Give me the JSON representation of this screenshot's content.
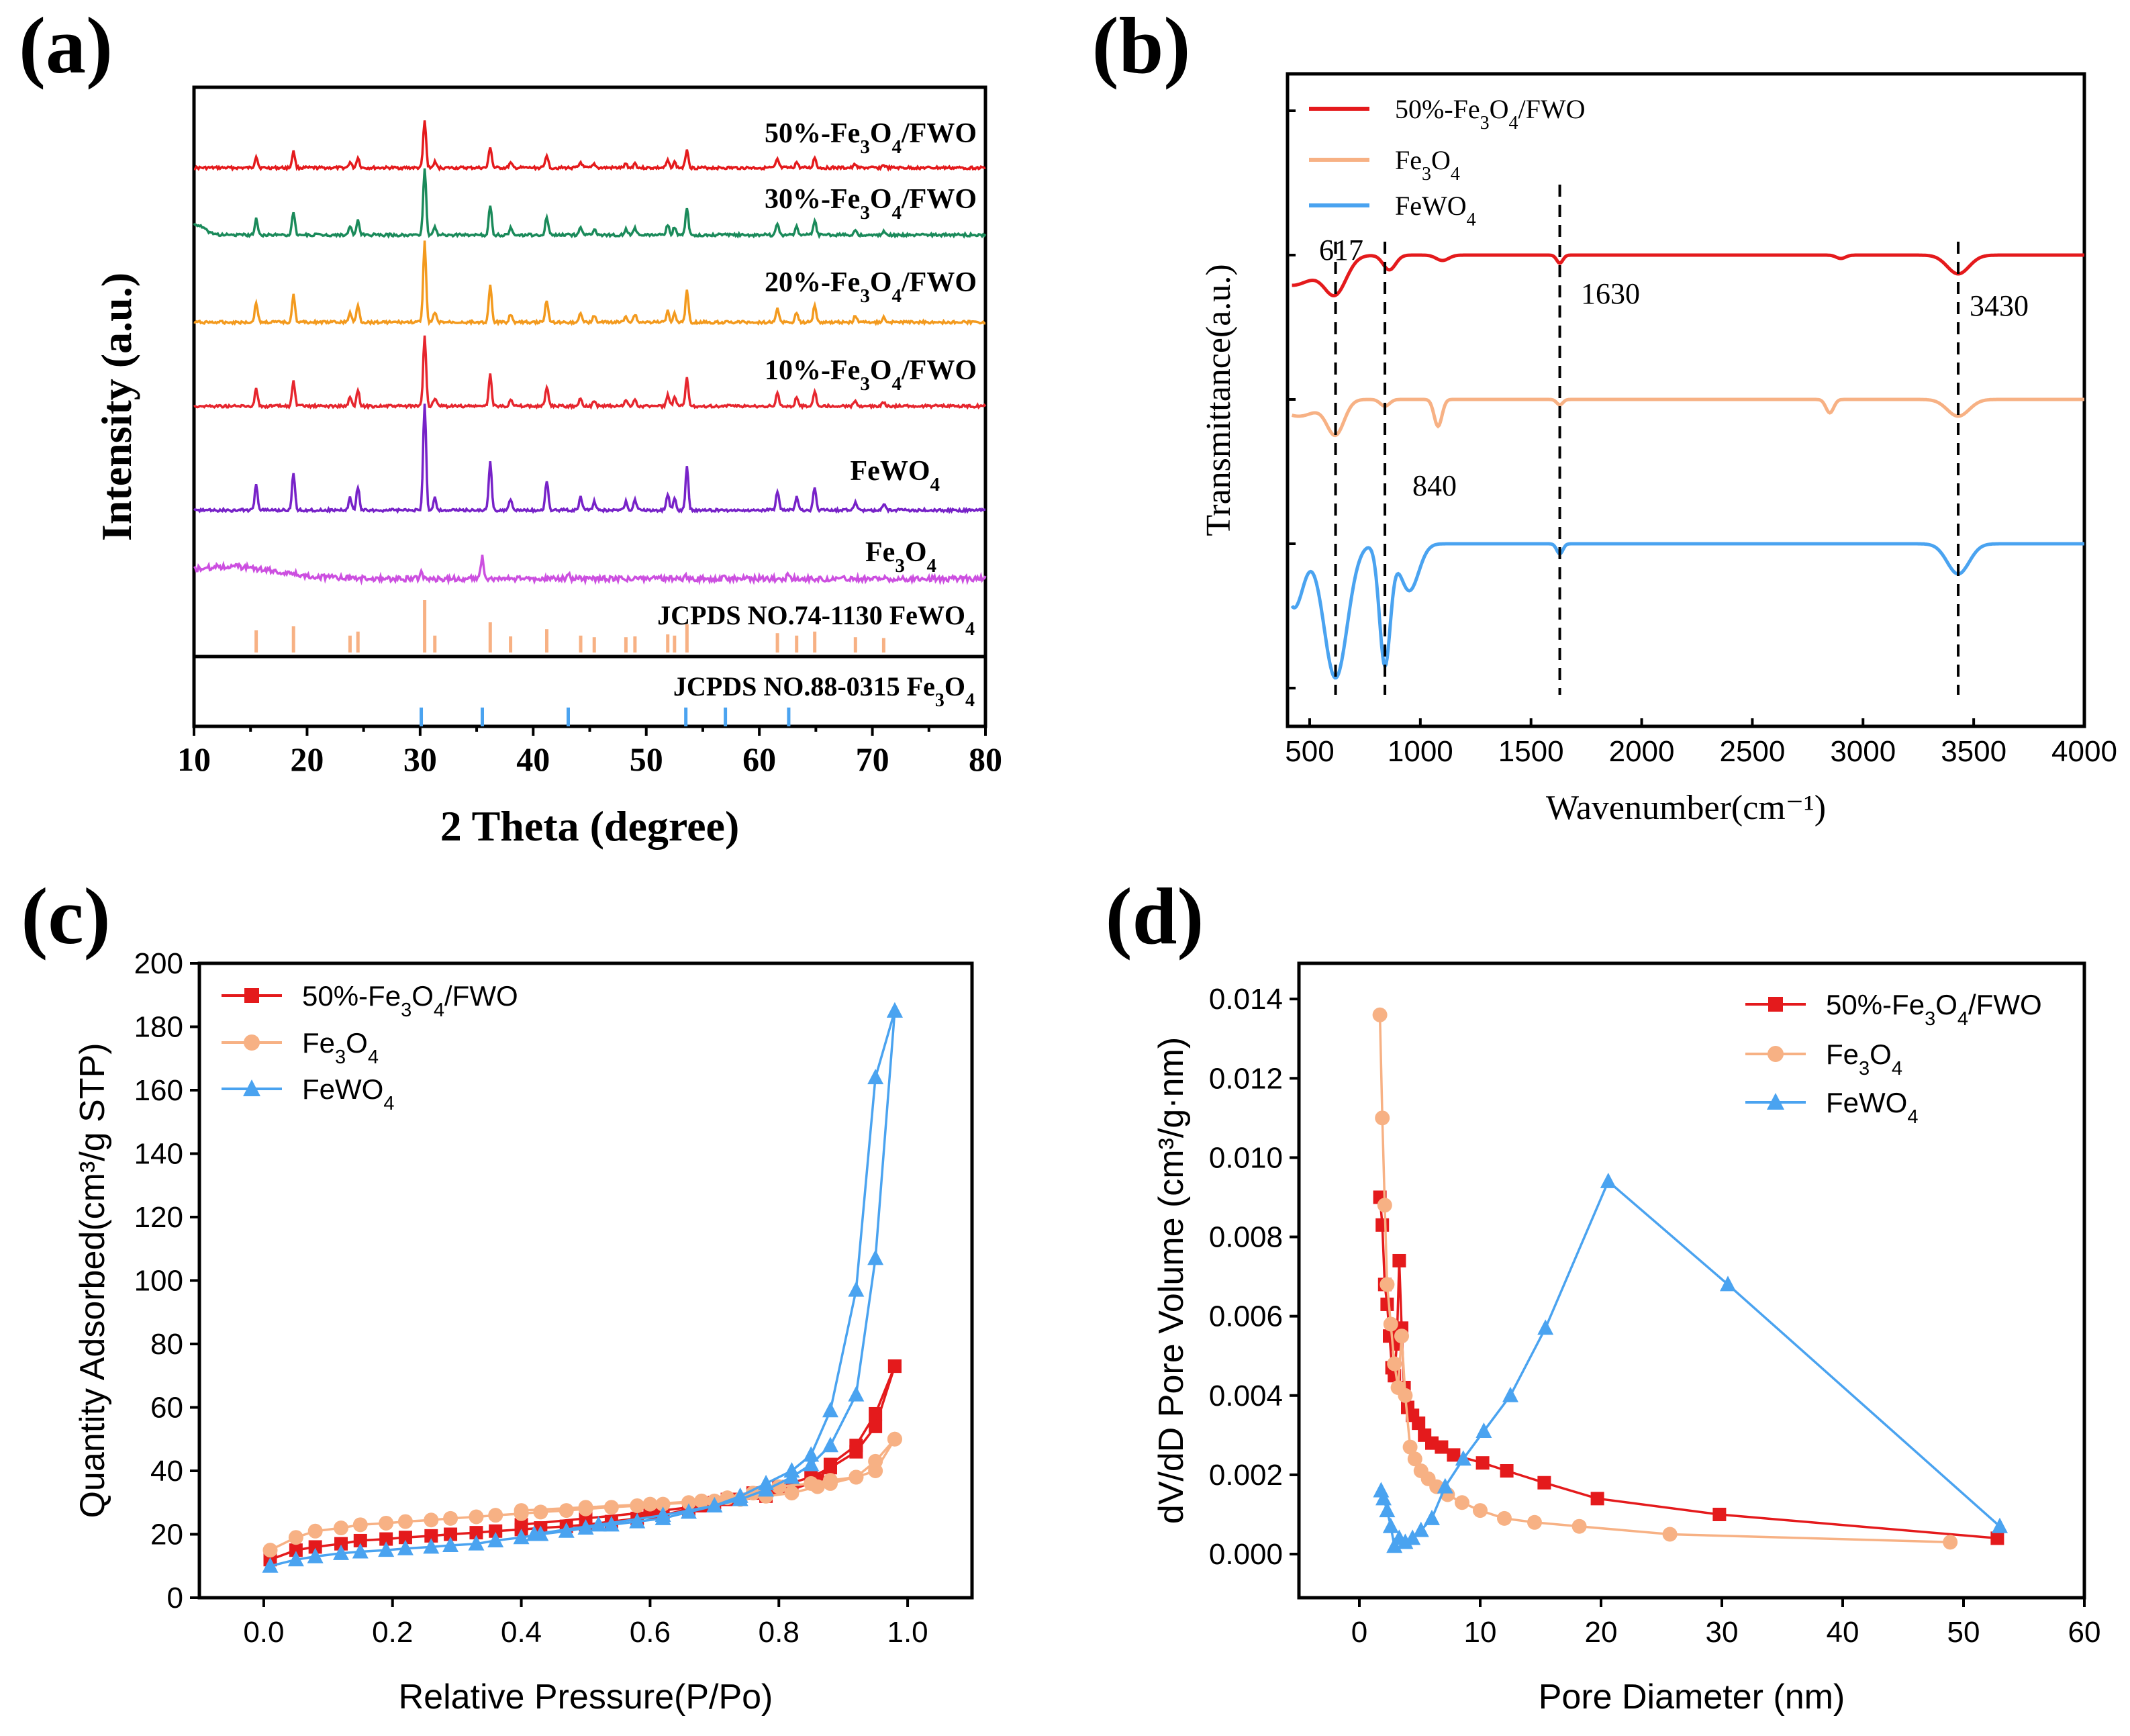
{
  "colors": {
    "fwo50": "#e41a1c",
    "fwo30": "#1a8a5a",
    "fwo20": "#f39a1e",
    "fwo10": "#e6262e",
    "fewo4": "#7722c8",
    "fe3o4": "#cc4fe0",
    "ref": "#f7b184",
    "ref2": "#4aa3f0",
    "b_fwo": "#e41a1c",
    "b_fe3o4": "#f7b184",
    "b_fewo4": "#4aa3f0"
  },
  "chart_data": [
    {
      "panel": "(a)",
      "type": "line",
      "xlabel": "2 Theta (degree)",
      "ylabel": "Intensity (a.u.)",
      "xlim": [
        10,
        80
      ],
      "xticks": [
        "10",
        "20",
        "30",
        "40",
        "50",
        "60",
        "70",
        "80"
      ],
      "peaks_fewo4": [
        15.5,
        18.8,
        23.8,
        24.5,
        30.4,
        31.3,
        36.2,
        38.0,
        41.2,
        44.2,
        45.4,
        48.2,
        49.0,
        51.9,
        52.5,
        53.6,
        61.6,
        63.3,
        64.9,
        68.5,
        71.0
      ],
      "peaks_fe3o4": [
        30.1,
        35.5,
        43.1,
        53.5,
        57.0,
        62.6
      ],
      "series": [
        {
          "name": "50%-Fe₃O₄/FWO",
          "label_base": "50%-Fe",
          "color_key": "fwo50"
        },
        {
          "name": "30%-Fe₃O₄/FWO",
          "label_base": "30%-Fe",
          "color_key": "fwo30"
        },
        {
          "name": "20%-Fe₃O₄/FWO",
          "label_base": "20%-Fe",
          "color_key": "fwo20"
        },
        {
          "name": "10%-Fe₃O₄/FWO",
          "label_base": "10%-Fe",
          "color_key": "fwo10"
        },
        {
          "name": "FeWO₄",
          "label_base": "FeWO",
          "color_key": "fewo4"
        },
        {
          "name": "Fe₃O₄",
          "label_base": "Fe",
          "color_key": "fe3o4"
        }
      ],
      "ref_labels": [
        "JCPDS NO.74-1130 FeWO₄",
        "JCPDS NO.88-0315 Fe₃O₄"
      ]
    },
    {
      "panel": "(b)",
      "type": "line",
      "xlabel": "Wavenumber(cm⁻¹)",
      "ylabel": "Transmittance(a.u.)",
      "xlim": [
        400,
        4000
      ],
      "xticks": [
        "500",
        "1000",
        "1500",
        "2000",
        "2500",
        "3000",
        "3500",
        "4000"
      ],
      "legend": [
        "50%-Fe₃O₄/FWO",
        "Fe₃O₄",
        "FeWO₄"
      ],
      "vlines": [
        617,
        840,
        1630,
        3430
      ],
      "annotations": [
        "617",
        "840",
        "1630",
        "3430"
      ]
    },
    {
      "panel": "(c)",
      "type": "scatter",
      "xlabel": "Relative Pressure(P/Po)",
      "ylabel": "Quantity Adsorbed(cm³/g STP)",
      "xlim": [
        -0.1,
        1.1
      ],
      "ylim": [
        0,
        200
      ],
      "xticks": [
        "0.0",
        "0.2",
        "0.4",
        "0.6",
        "0.8",
        "1.0"
      ],
      "yticks": [
        "0",
        "20",
        "40",
        "60",
        "80",
        "100",
        "120",
        "140",
        "160",
        "180",
        "200"
      ],
      "legend": [
        "50%-Fe₃O₄/FWO",
        "Fe₃O₄",
        "FeWO₄"
      ],
      "series": [
        {
          "name": "50%-Fe₃O₄/FWO",
          "marker": "square",
          "ads_x": [
            0.01,
            0.05,
            0.08,
            0.12,
            0.15,
            0.19,
            0.22,
            0.26,
            0.29,
            0.33,
            0.36,
            0.4,
            0.43,
            0.47,
            0.5,
            0.54,
            0.58,
            0.62,
            0.66,
            0.7,
            0.74,
            0.78,
            0.82,
            0.86,
            0.88,
            0.92,
            0.95,
            0.98
          ],
          "ads_y": [
            12,
            15,
            16,
            17,
            18,
            18.5,
            19,
            19.5,
            20,
            20.5,
            21,
            21.5,
            22,
            22.5,
            23,
            24,
            25,
            26,
            28,
            30,
            31,
            32,
            34,
            37,
            42,
            48,
            58,
            73
          ],
          "des_x": [
            0.98,
            0.95,
            0.92,
            0.88,
            0.85,
            0.8,
            0.76,
            0.72,
            0.68,
            0.6,
            0.5,
            0.4
          ],
          "des_y": [
            73,
            54,
            46,
            41,
            38,
            35,
            33,
            31,
            29,
            27,
            25,
            23
          ]
        },
        {
          "name": "Fe₃O₄",
          "marker": "circle",
          "ads_x": [
            0.01,
            0.05,
            0.08,
            0.12,
            0.15,
            0.19,
            0.22,
            0.26,
            0.29,
            0.33,
            0.36,
            0.4,
            0.43,
            0.47,
            0.5,
            0.54,
            0.58,
            0.62,
            0.66,
            0.7,
            0.74,
            0.78,
            0.82,
            0.86,
            0.88,
            0.92,
            0.95,
            0.98
          ],
          "ads_y": [
            15,
            19,
            21,
            22,
            23,
            23.5,
            24,
            24.5,
            25,
            25.5,
            26,
            26.5,
            27,
            27.5,
            28,
            28.5,
            29,
            29.5,
            30,
            30.5,
            31,
            32,
            33,
            35,
            36,
            38,
            43,
            50
          ],
          "des_x": [
            0.98,
            0.95,
            0.92,
            0.88,
            0.85,
            0.8,
            0.76,
            0.72,
            0.68,
            0.6,
            0.5,
            0.4
          ],
          "des_y": [
            50,
            40,
            38,
            37,
            36,
            35,
            33,
            31.5,
            30.5,
            29.5,
            28.5,
            27.5
          ]
        },
        {
          "name": "FeWO₄",
          "marker": "triangle",
          "ads_x": [
            0.01,
            0.05,
            0.08,
            0.12,
            0.15,
            0.19,
            0.22,
            0.26,
            0.29,
            0.33,
            0.36,
            0.4,
            0.43,
            0.47,
            0.5,
            0.54,
            0.58,
            0.62,
            0.66,
            0.7,
            0.74,
            0.78,
            0.82,
            0.85,
            0.88,
            0.92,
            0.95,
            0.98
          ],
          "ads_y": [
            10,
            12,
            13,
            14,
            14.5,
            15,
            15.5,
            16,
            16.5,
            17,
            18,
            19,
            20,
            21,
            22,
            23,
            24,
            25,
            27,
            29,
            31,
            34,
            38,
            42,
            48,
            64,
            107,
            185
          ],
          "des_x": [
            0.98,
            0.95,
            0.92,
            0.88,
            0.85,
            0.82,
            0.78,
            0.74,
            0.7,
            0.62,
            0.52,
            0.42
          ],
          "des_y": [
            185,
            164,
            97,
            59,
            45,
            40,
            36,
            32,
            29,
            26,
            23,
            20
          ]
        }
      ]
    },
    {
      "panel": "(d)",
      "type": "scatter",
      "xlabel": "Pore Diameter (nm)",
      "ylabel": "dV/dD Pore Volume (cm³/g·nm)",
      "xlim": [
        -5,
        60
      ],
      "ylim": [
        -0.0011,
        0.0149
      ],
      "xticks": [
        "0",
        "10",
        "20",
        "30",
        "40",
        "50",
        "60"
      ],
      "yticks": [
        "0.000",
        "0.002",
        "0.004",
        "0.006",
        "0.008",
        "0.010",
        "0.012",
        "0.014"
      ],
      "legend": [
        "50%-Fe₃O₄/FWO",
        "Fe₃O₄",
        "FeWO₄"
      ],
      "series": [
        {
          "name": "50%-Fe₃O₄/FWO",
          "marker": "square",
          "x": [
            1.7,
            1.9,
            2.1,
            2.3,
            2.5,
            2.7,
            2.9,
            3.1,
            3.3,
            3.5,
            3.7,
            4.0,
            4.4,
            4.9,
            5.4,
            6.0,
            6.8,
            7.8,
            10.2,
            12.2,
            15.3,
            19.7,
            29.8,
            52.8
          ],
          "y": [
            0.009,
            0.0083,
            0.0068,
            0.0063,
            0.0055,
            0.0047,
            0.0045,
            0.0053,
            0.0074,
            0.0057,
            0.0042,
            0.0037,
            0.0035,
            0.0033,
            0.003,
            0.0028,
            0.0027,
            0.0025,
            0.0023,
            0.0021,
            0.0018,
            0.0014,
            0.001,
            0.0004
          ]
        },
        {
          "name": "Fe₃O₄",
          "marker": "circle",
          "x": [
            1.7,
            1.9,
            2.1,
            2.3,
            2.6,
            2.9,
            3.2,
            3.5,
            3.8,
            4.2,
            4.6,
            5.1,
            5.7,
            6.4,
            7.3,
            8.5,
            10.0,
            12.0,
            14.5,
            18.2,
            25.7,
            48.9
          ],
          "y": [
            0.0136,
            0.011,
            0.0088,
            0.0068,
            0.0058,
            0.0048,
            0.0042,
            0.0055,
            0.004,
            0.0027,
            0.0024,
            0.0021,
            0.0019,
            0.0017,
            0.0015,
            0.0013,
            0.0011,
            0.0009,
            0.0008,
            0.0007,
            0.0005,
            0.0003
          ]
        },
        {
          "name": "FeWO₄",
          "marker": "triangle",
          "x": [
            1.8,
            2.0,
            2.3,
            2.6,
            2.9,
            3.3,
            3.8,
            4.4,
            5.1,
            6.0,
            7.1,
            8.6,
            10.3,
            12.5,
            15.4,
            20.6,
            30.5,
            53.0
          ],
          "y": [
            0.0016,
            0.0014,
            0.0011,
            0.0007,
            0.0002,
            0.0004,
            0.0003,
            0.0004,
            0.0006,
            0.0009,
            0.0017,
            0.0024,
            0.0031,
            0.004,
            0.0057,
            0.0094,
            0.0068,
            0.0007
          ]
        }
      ]
    }
  ]
}
